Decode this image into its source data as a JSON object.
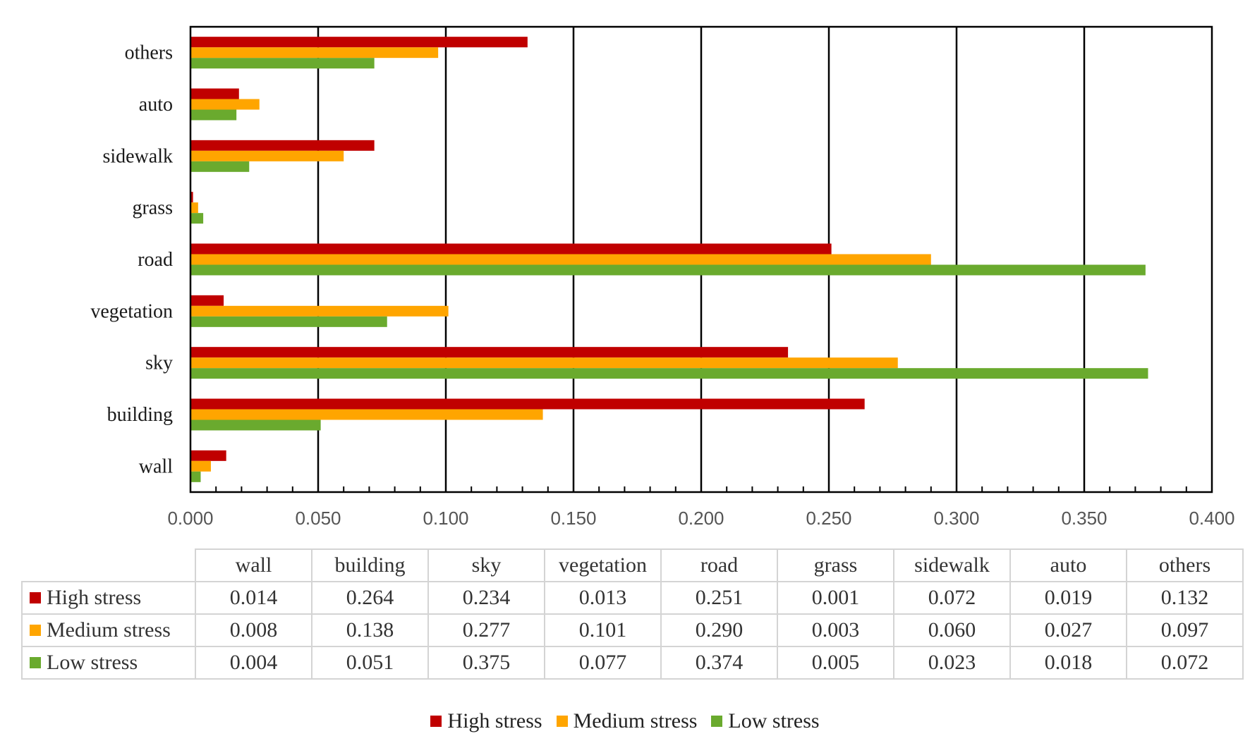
{
  "chart_data": {
    "type": "bar",
    "orientation": "horizontal",
    "categories": [
      "wall",
      "building",
      "sky",
      "vegetation",
      "road",
      "grass",
      "sidewalk",
      "auto",
      "others"
    ],
    "series": [
      {
        "name": "High stress",
        "color": "#c00000",
        "values": [
          0.014,
          0.264,
          0.234,
          0.013,
          0.251,
          0.001,
          0.072,
          0.019,
          0.132
        ]
      },
      {
        "name": "Medium stress",
        "color": "#ffa500",
        "values": [
          0.008,
          0.138,
          0.277,
          0.101,
          0.29,
          0.003,
          0.06,
          0.027,
          0.097
        ]
      },
      {
        "name": "Low stress",
        "color": "#6aaa2e",
        "values": [
          0.004,
          0.051,
          0.375,
          0.077,
          0.374,
          0.005,
          0.023,
          0.018,
          0.072
        ]
      }
    ],
    "xlim": [
      0,
      0.4
    ],
    "xticks": [
      "0.000",
      "0.050",
      "0.100",
      "0.150",
      "0.200",
      "0.250",
      "0.300",
      "0.350",
      "0.400"
    ],
    "grid": true,
    "legend": "bottom",
    "data_table": {
      "rows": [
        {
          "series": "High stress",
          "values": [
            "0.014",
            "0.264",
            "0.234",
            "0.013",
            "0.251",
            "0.001",
            "0.072",
            "0.019",
            "0.132"
          ]
        },
        {
          "series": "Medium stress",
          "values": [
            "0.008",
            "0.138",
            "0.277",
            "0.101",
            "0.290",
            "0.003",
            "0.060",
            "0.027",
            "0.097"
          ]
        },
        {
          "series": "Low stress",
          "values": [
            "0.004",
            "0.051",
            "0.375",
            "0.077",
            "0.374",
            "0.005",
            "0.023",
            "0.018",
            "0.072"
          ]
        }
      ]
    }
  }
}
